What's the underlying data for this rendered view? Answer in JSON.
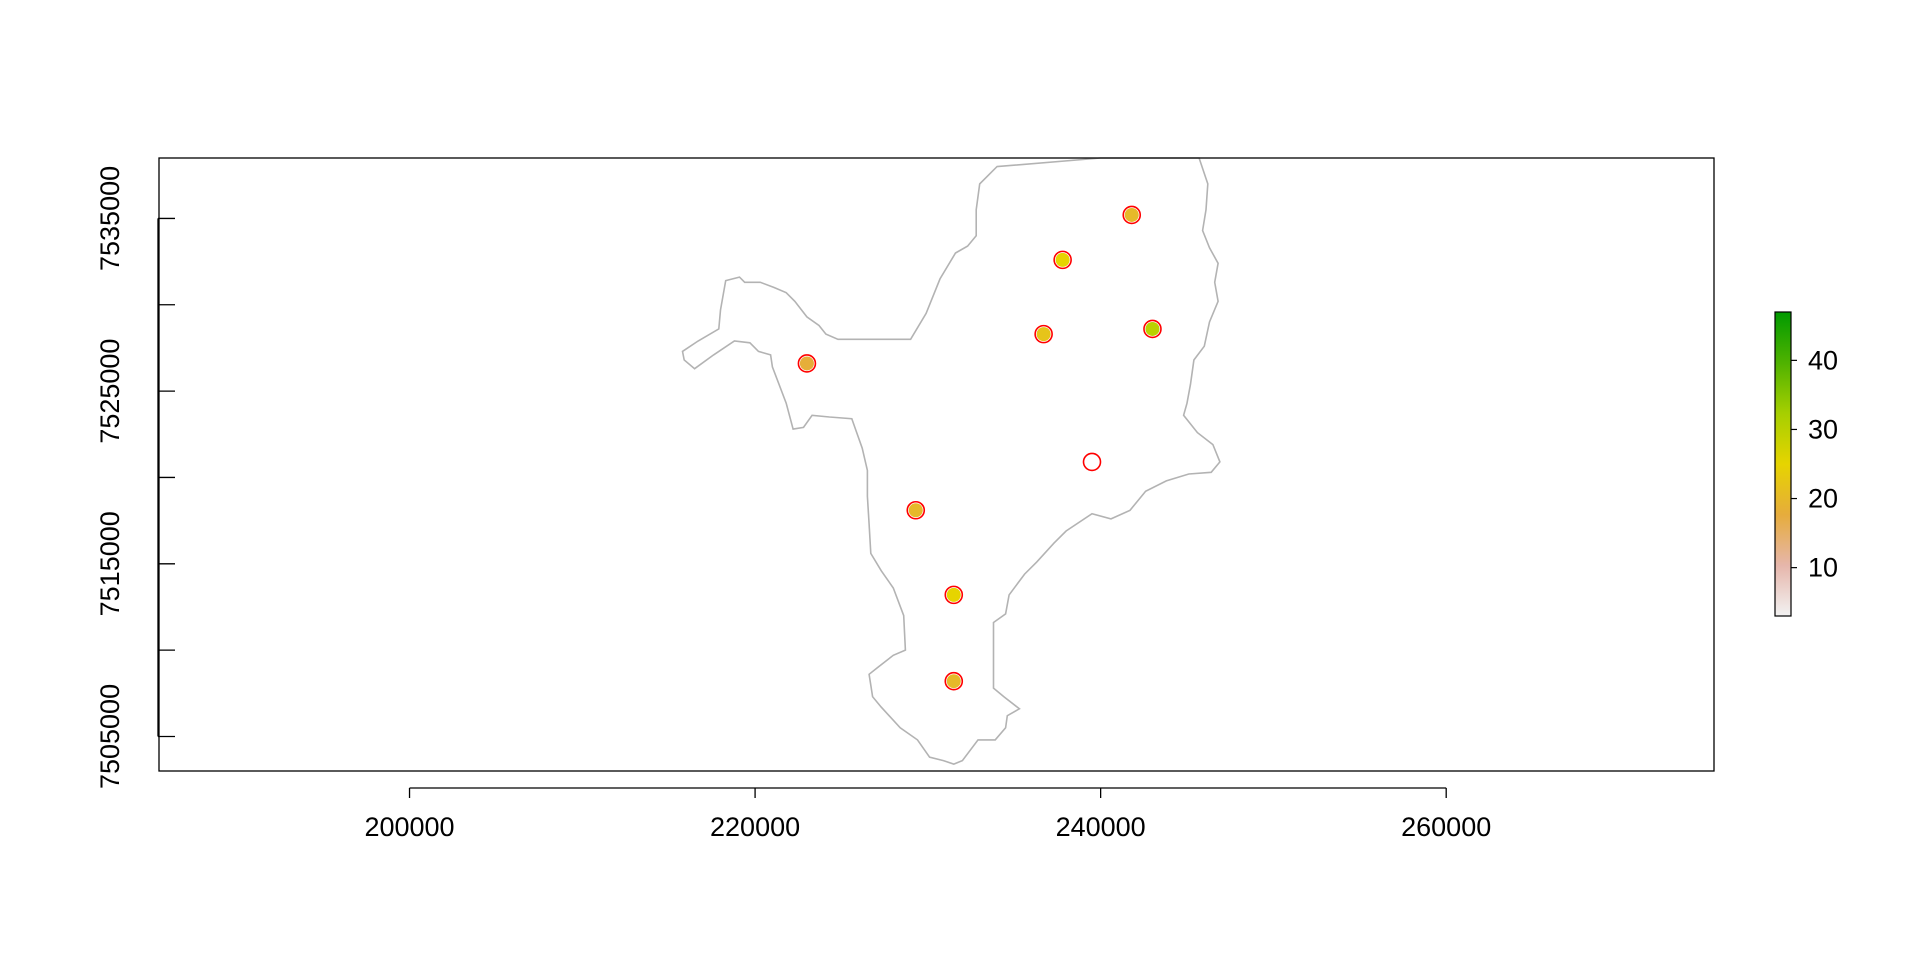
{
  "chart_data": {
    "type": "scatter",
    "title": "",
    "xlabel": "",
    "ylabel": "",
    "xlim": [
      185500,
      275500
    ],
    "ylim": [
      7503000,
      7538500
    ],
    "x_ticks": [
      200000,
      220000,
      240000,
      260000
    ],
    "x_tick_labels": [
      "200000",
      "220000",
      "240000",
      "260000"
    ],
    "y_ticks": [
      7505000,
      7510000,
      7515000,
      7520000,
      7525000,
      7530000,
      7535000
    ],
    "y_tick_labels": [
      "7505000",
      "",
      "7515000",
      "",
      "7525000",
      "",
      "7535000"
    ],
    "grid": false,
    "points": [
      {
        "x": 241800,
        "y": 7535200,
        "value": 20
      },
      {
        "x": 237800,
        "y": 7532600,
        "value": 25
      },
      {
        "x": 236700,
        "y": 7528300,
        "value": 22
      },
      {
        "x": 243000,
        "y": 7528600,
        "value": 30
      },
      {
        "x": 223000,
        "y": 7526600,
        "value": 18
      },
      {
        "x": 239500,
        "y": 7520900,
        "value": null
      },
      {
        "x": 229300,
        "y": 7518100,
        "value": 20
      },
      {
        "x": 231500,
        "y": 7513200,
        "value": 25
      },
      {
        "x": 231500,
        "y": 7508200,
        "value": 20
      }
    ],
    "boundary": [
      [
        234000,
        7538000
      ],
      [
        240000,
        7538500
      ],
      [
        245700,
        7538500
      ],
      [
        246200,
        7537000
      ],
      [
        246100,
        7535500
      ],
      [
        245900,
        7534300
      ],
      [
        246300,
        7533300
      ],
      [
        246800,
        7532400
      ],
      [
        246600,
        7531300
      ],
      [
        246800,
        7530200
      ],
      [
        246300,
        7529000
      ],
      [
        246000,
        7527600
      ],
      [
        245400,
        7526800
      ],
      [
        245200,
        7525400
      ],
      [
        245000,
        7524300
      ],
      [
        244800,
        7523600
      ],
      [
        245600,
        7522600
      ],
      [
        246500,
        7521900
      ],
      [
        246900,
        7520900
      ],
      [
        246400,
        7520300
      ],
      [
        245100,
        7520200
      ],
      [
        243800,
        7519800
      ],
      [
        242600,
        7519200
      ],
      [
        241700,
        7518100
      ],
      [
        240600,
        7517600
      ],
      [
        239500,
        7517900
      ],
      [
        238000,
        7516900
      ],
      [
        237300,
        7516200
      ],
      [
        236300,
        7515100
      ],
      [
        235600,
        7514400
      ],
      [
        234700,
        7513200
      ],
      [
        234500,
        7512100
      ],
      [
        233800,
        7511600
      ],
      [
        233800,
        7507800
      ],
      [
        234400,
        7507300
      ],
      [
        235300,
        7506600
      ],
      [
        234600,
        7506200
      ],
      [
        234500,
        7505500
      ],
      [
        233900,
        7504800
      ],
      [
        232900,
        7504800
      ],
      [
        232000,
        7503600
      ],
      [
        231500,
        7503400
      ],
      [
        230900,
        7503600
      ],
      [
        230100,
        7503800
      ],
      [
        229400,
        7504800
      ],
      [
        228400,
        7505500
      ],
      [
        227300,
        7506700
      ],
      [
        226800,
        7507300
      ],
      [
        226600,
        7508600
      ],
      [
        227100,
        7509000
      ],
      [
        228000,
        7509700
      ],
      [
        228700,
        7510000
      ],
      [
        228600,
        7512000
      ],
      [
        228000,
        7513600
      ],
      [
        227300,
        7514600
      ],
      [
        226700,
        7515600
      ],
      [
        226600,
        7517300
      ],
      [
        226500,
        7518900
      ],
      [
        226500,
        7520400
      ],
      [
        226200,
        7521700
      ],
      [
        225600,
        7523400
      ],
      [
        224300,
        7523500
      ],
      [
        223300,
        7523600
      ],
      [
        222800,
        7522900
      ],
      [
        222200,
        7522800
      ],
      [
        221800,
        7524300
      ],
      [
        221000,
        7526400
      ],
      [
        220900,
        7527100
      ],
      [
        220200,
        7527300
      ],
      [
        219700,
        7527800
      ],
      [
        218800,
        7527900
      ],
      [
        217600,
        7527100
      ],
      [
        216500,
        7526300
      ],
      [
        215900,
        7526800
      ],
      [
        215800,
        7527300
      ],
      [
        216700,
        7527900
      ],
      [
        217900,
        7528600
      ],
      [
        218000,
        7529700
      ],
      [
        218300,
        7531400
      ],
      [
        219100,
        7531600
      ],
      [
        219400,
        7531300
      ],
      [
        220300,
        7531300
      ],
      [
        221100,
        7531000
      ],
      [
        221800,
        7530700
      ],
      [
        222300,
        7530200
      ],
      [
        223000,
        7529300
      ],
      [
        223700,
        7528800
      ],
      [
        224100,
        7528300
      ],
      [
        224800,
        7528000
      ],
      [
        229000,
        7528000
      ],
      [
        229900,
        7529500
      ],
      [
        230700,
        7531500
      ],
      [
        231600,
        7533000
      ],
      [
        232300,
        7533400
      ],
      [
        232800,
        7534000
      ],
      [
        232800,
        7535500
      ],
      [
        233000,
        7537000
      ],
      [
        233500,
        7537500
      ],
      [
        234000,
        7538000
      ]
    ],
    "colorbar": {
      "min": 3,
      "max": 47,
      "ticks": [
        10,
        20,
        30,
        40
      ],
      "tick_labels": [
        "10",
        "20",
        "30",
        "40"
      ],
      "stops": [
        "#f2f2f2",
        "#e6b6ab",
        "#e6ac3c",
        "#e6d400",
        "#a6cf00",
        "#4fb200",
        "#009a00"
      ]
    },
    "style": {
      "boundary_color": "#b3b3b3",
      "point_edge_color": "#ff0000",
      "frame_color": "#000000"
    }
  }
}
